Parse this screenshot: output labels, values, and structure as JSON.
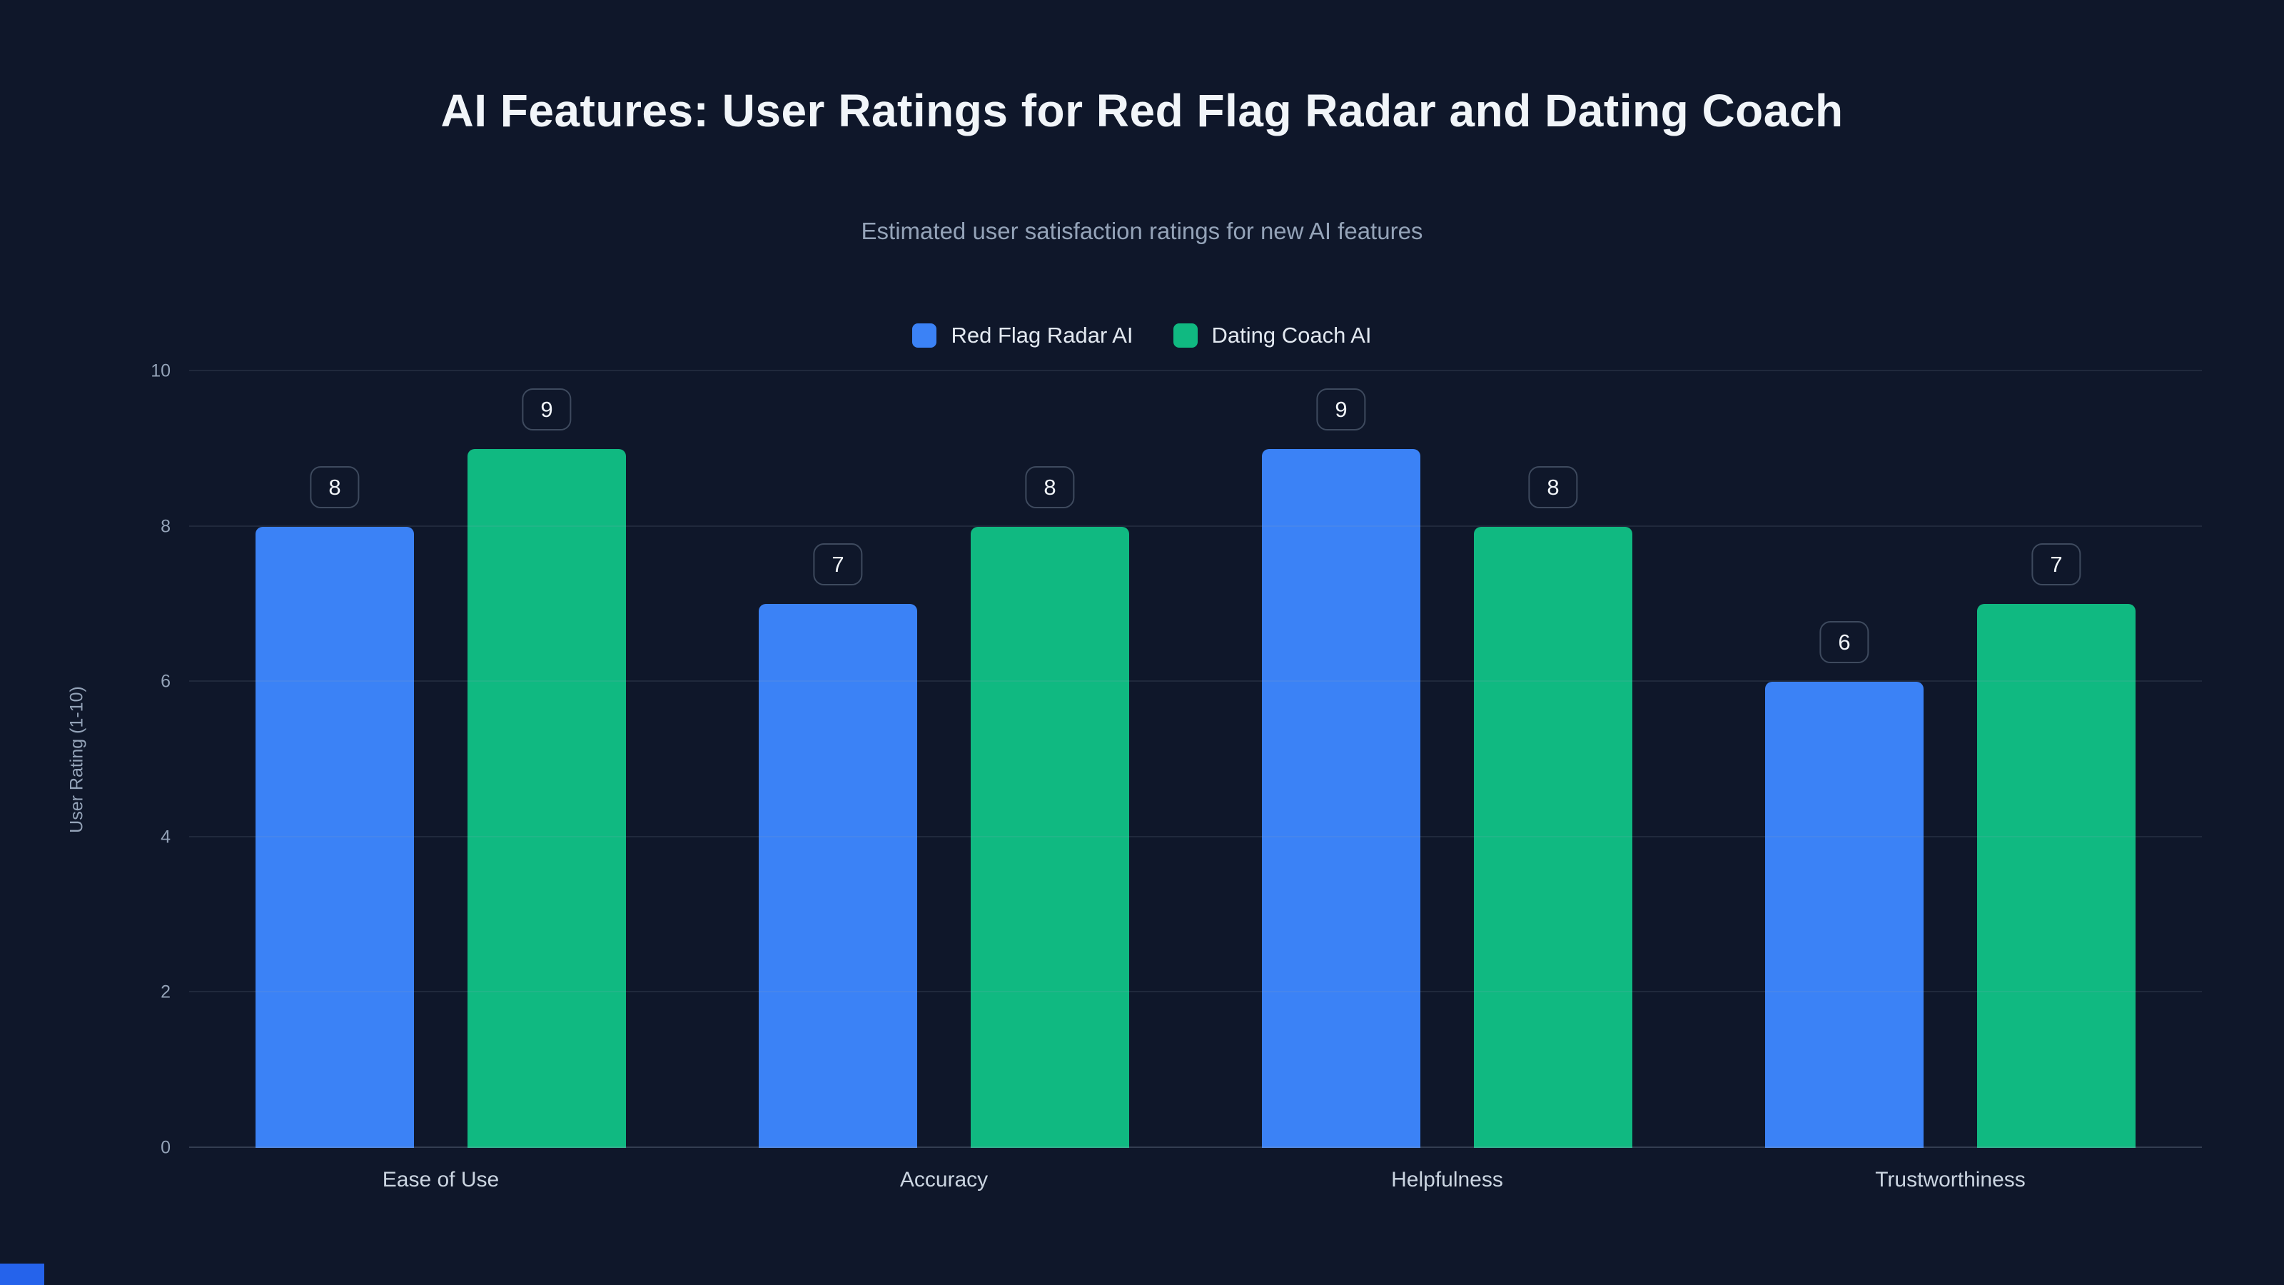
{
  "colors": {
    "background": "#0f172a",
    "series_blue": "#3b82f6",
    "series_green": "#10b981",
    "accent_corner": "#2563eb"
  },
  "chart_data": {
    "type": "bar",
    "title": "AI Features: User Ratings for Red Flag Radar and Dating Coach",
    "subtitle": "Estimated user satisfaction ratings for new AI features",
    "ylabel": "User Rating (1-10)",
    "ylim": [
      0,
      10
    ],
    "yticks": [
      0,
      2,
      4,
      6,
      8,
      10
    ],
    "grid": true,
    "legend_position": "top",
    "categories": [
      "Ease of Use",
      "Accuracy",
      "Helpfulness",
      "Trustworthiness"
    ],
    "series": [
      {
        "name": "Red Flag Radar AI",
        "color": "#3b82f6",
        "values": [
          8,
          7,
          9,
          6
        ]
      },
      {
        "name": "Dating Coach AI",
        "color": "#10b981",
        "values": [
          9,
          8,
          8,
          7
        ]
      }
    ]
  }
}
